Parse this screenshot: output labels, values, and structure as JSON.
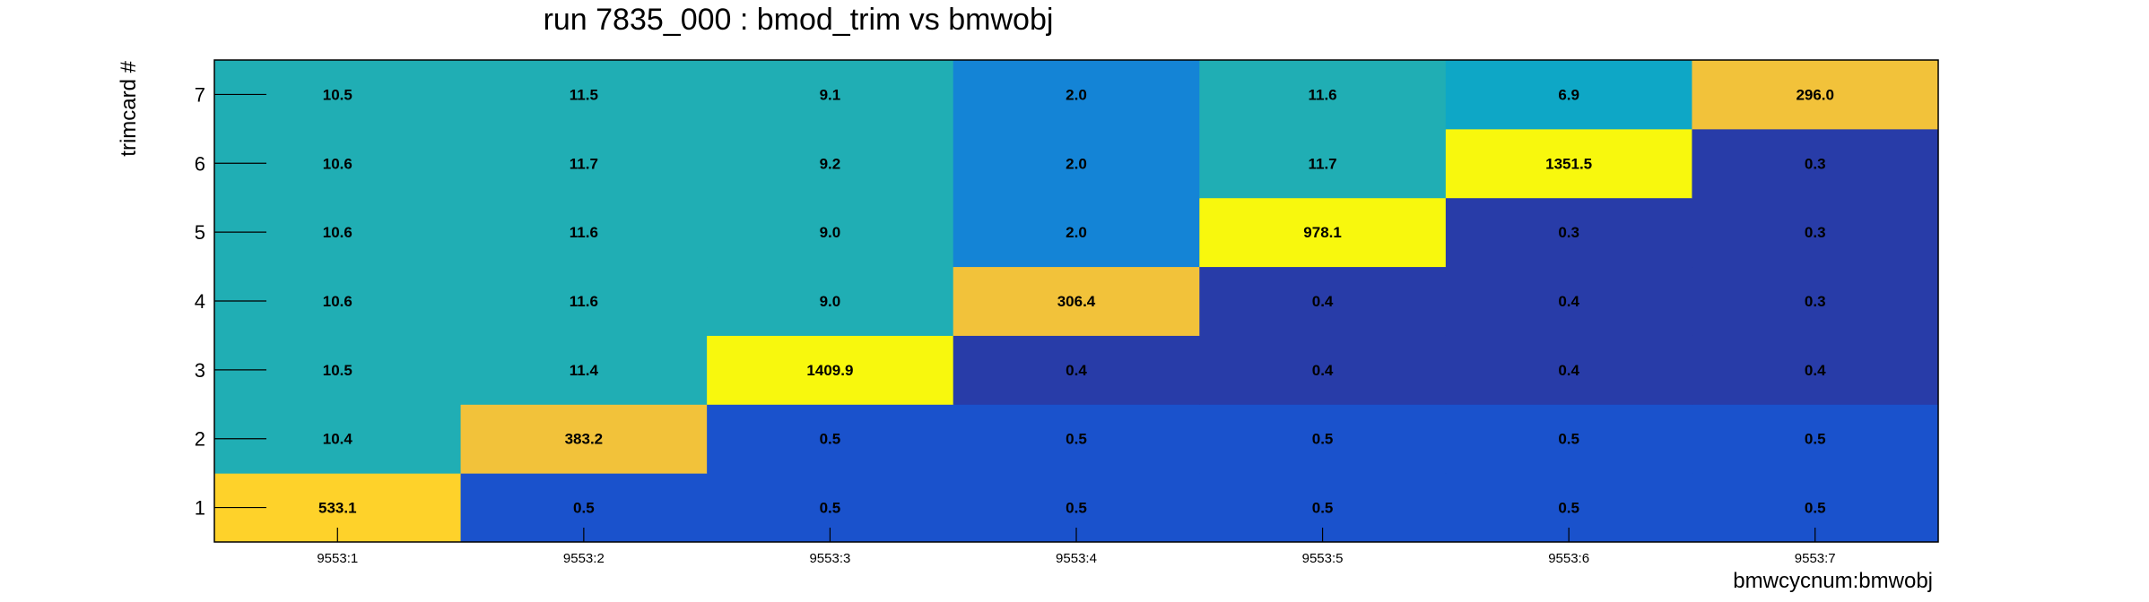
{
  "chart_data": {
    "type": "heatmap",
    "title": "run 7835_000 : bmod_trim vs bmwobj",
    "xlabel": "bmwcycnum:bmwobj",
    "ylabel": "trimcard #",
    "x_categories": [
      "9553:1",
      "9553:2",
      "9553:3",
      "9553:4",
      "9553:5",
      "9553:6",
      "9553:7"
    ],
    "y_categories": [
      "1",
      "2",
      "3",
      "4",
      "5",
      "6",
      "7"
    ],
    "values": [
      [
        "533.1",
        "0.5",
        "0.5",
        "0.5",
        "0.5",
        "0.5",
        "0.5"
      ],
      [
        "10.4",
        "383.2",
        "0.5",
        "0.5",
        "0.5",
        "0.5",
        "0.5"
      ],
      [
        "10.5",
        "11.4",
        "1409.9",
        "0.4",
        "0.4",
        "0.4",
        "0.4"
      ],
      [
        "10.6",
        "11.6",
        "9.0",
        "306.4",
        "0.4",
        "0.4",
        "0.3"
      ],
      [
        "10.6",
        "11.6",
        "9.0",
        "2.0",
        "978.1",
        "0.3",
        "0.3"
      ],
      [
        "10.6",
        "11.7",
        "9.2",
        "2.0",
        "11.7",
        "1351.5",
        "0.3"
      ],
      [
        "10.5",
        "11.5",
        "9.1",
        "2.0",
        "11.6",
        "6.9",
        "296.0"
      ]
    ],
    "colors": [
      [
        "#fed22a",
        "#1a52cc",
        "#1a52cc",
        "#1a52cc",
        "#1a52cc",
        "#1a52cc",
        "#1a52cc"
      ],
      [
        "#20aeb4",
        "#f2c23a",
        "#1a52cc",
        "#1a52cc",
        "#1a52cc",
        "#1a52cc",
        "#1a52cc"
      ],
      [
        "#20aeb4",
        "#20aeb4",
        "#f8f80d",
        "#283ca8",
        "#283ca8",
        "#283ca8",
        "#283ca8"
      ],
      [
        "#20aeb4",
        "#20aeb4",
        "#20aeb4",
        "#f2c23a",
        "#283ca8",
        "#283ca8",
        "#283ca8"
      ],
      [
        "#20aeb4",
        "#20aeb4",
        "#20aeb4",
        "#1484d6",
        "#f8f80d",
        "#283ca8",
        "#283ca8"
      ],
      [
        "#20aeb4",
        "#20aeb4",
        "#20aeb4",
        "#1484d6",
        "#20aeb4",
        "#f8f80d",
        "#283ca8"
      ],
      [
        "#20aeb4",
        "#20aeb4",
        "#20aeb4",
        "#1484d6",
        "#20aeb4",
        "#0ea7c6",
        "#f2c23a"
      ]
    ],
    "grid": false,
    "legend": "none"
  }
}
